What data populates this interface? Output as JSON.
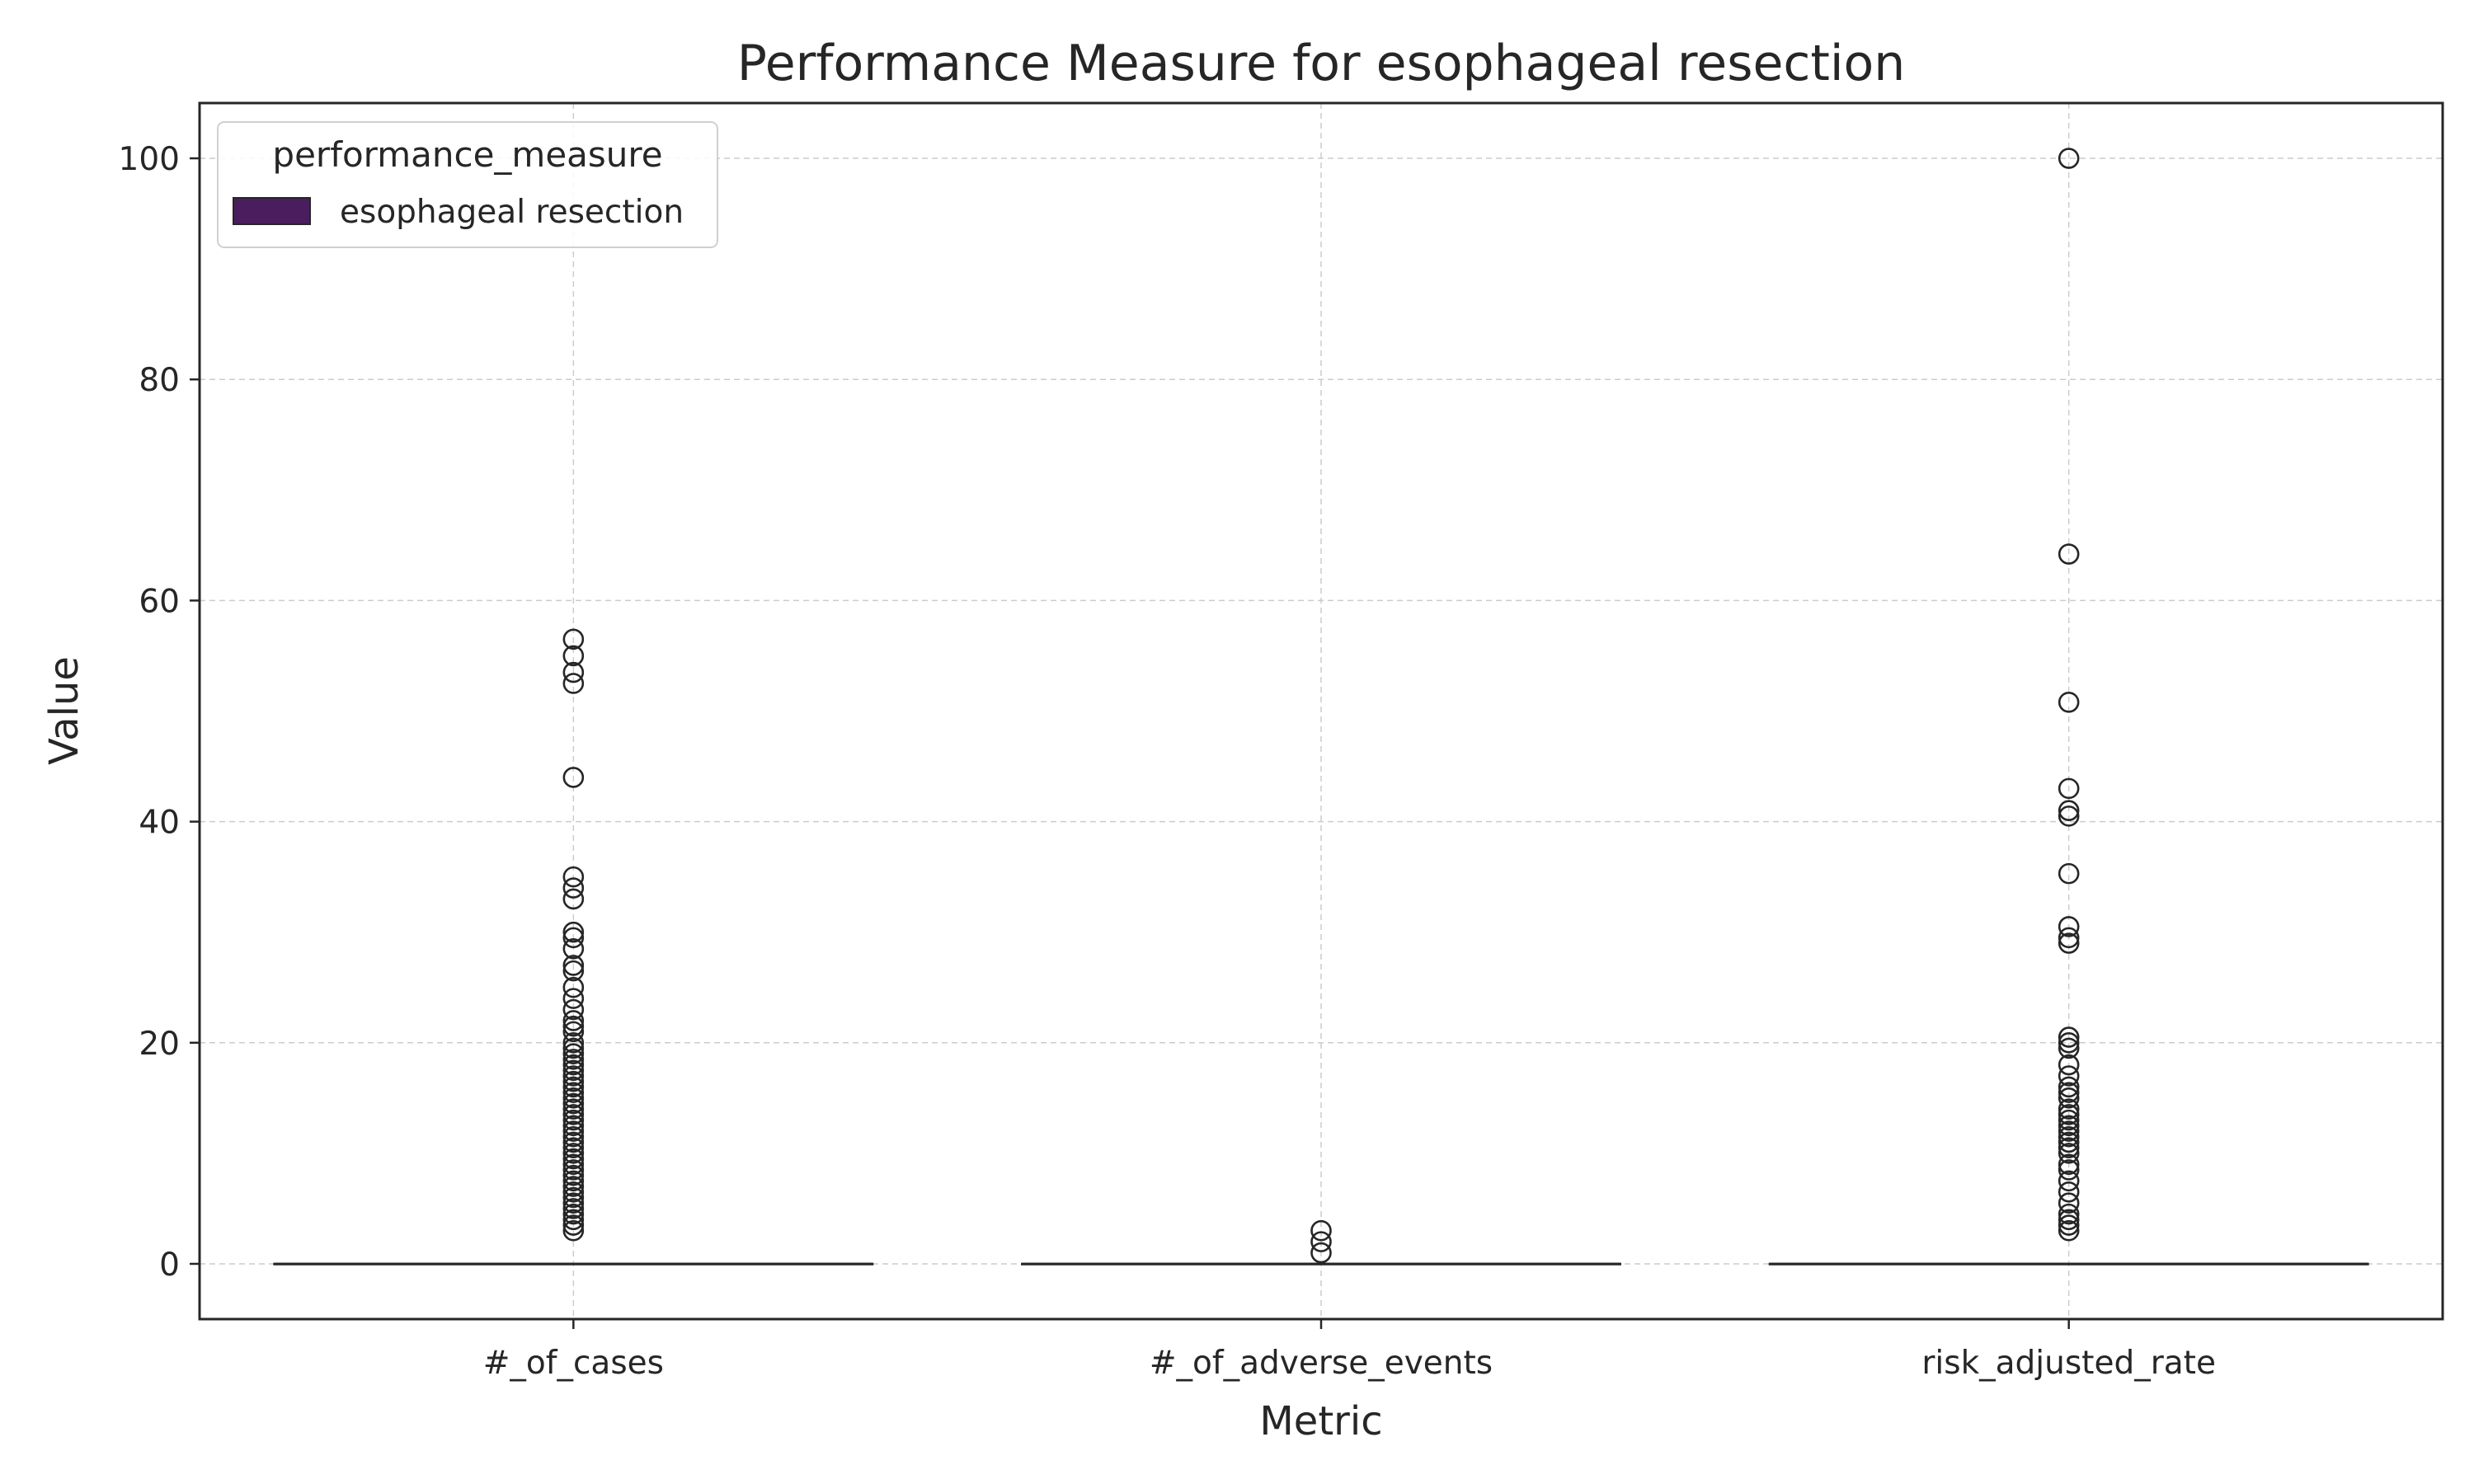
{
  "chart_data": {
    "type": "box",
    "title": "Performance Measure for esophageal resection",
    "xlabel": "Metric",
    "ylabel": "Value",
    "categories": [
      "#_of_cases",
      "#_of_adverse_events",
      "risk_adjusted_rate"
    ],
    "ylim": [
      -5,
      105
    ],
    "yticks": [
      0,
      20,
      40,
      60,
      80,
      100
    ],
    "grid": true,
    "legend": {
      "title": "performance_measure",
      "position": "top-left",
      "entries": [
        {
          "label": "esophageal resection",
          "color": "#4a1d5e"
        }
      ]
    },
    "series": [
      {
        "name": "esophageal resection",
        "color": "#4a1d5e",
        "boxes": [
          {
            "category": "#_of_cases",
            "q1": 0,
            "median": 0,
            "q3": 0,
            "whisker_low": 0,
            "whisker_high": 0,
            "outliers": [
              3,
              3.5,
              4,
              4.5,
              5,
              5.5,
              6,
              6.5,
              7,
              7.5,
              8,
              8.5,
              9,
              9.5,
              10,
              10.5,
              11,
              11.5,
              12,
              12.5,
              13,
              13.5,
              14,
              14.5,
              15,
              15.5,
              16,
              16.5,
              17,
              17.5,
              18,
              18.5,
              19,
              19.5,
              20,
              21,
              21.5,
              22,
              23,
              24,
              25,
              26.5,
              27,
              28.5,
              29.5,
              30,
              33,
              34,
              35,
              44,
              52.5,
              53.5,
              55,
              56.5
            ]
          },
          {
            "category": "#_of_adverse_events",
            "q1": 0,
            "median": 0,
            "q3": 0,
            "whisker_low": 0,
            "whisker_high": 0,
            "outliers": [
              1,
              2,
              3
            ]
          },
          {
            "category": "risk_adjusted_rate",
            "q1": 0,
            "median": 0,
            "q3": 0,
            "whisker_low": 0,
            "whisker_high": 0,
            "outliers": [
              3,
              3.5,
              4,
              4.5,
              5.5,
              6.5,
              7.5,
              8.5,
              9,
              10,
              10.5,
              11,
              11.5,
              12,
              12.5,
              13,
              13.5,
              14,
              15,
              15.5,
              16,
              17,
              18,
              19.5,
              20,
              20.5,
              29,
              29.5,
              30.5,
              35.3,
              40.5,
              41,
              43,
              50.8,
              64.2,
              100
            ]
          }
        ]
      }
    ]
  }
}
